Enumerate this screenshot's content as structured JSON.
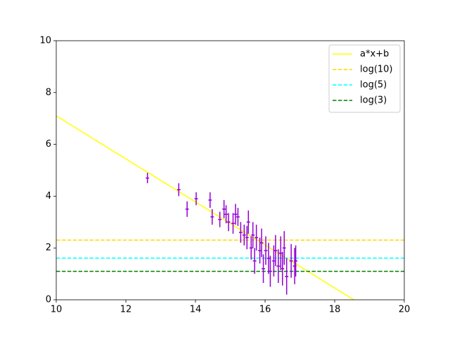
{
  "chart_data": {
    "type": "errorbar",
    "xlim": [
      10,
      20
    ],
    "ylim": [
      0,
      10
    ],
    "xticks": [
      10,
      12,
      14,
      16,
      18,
      20
    ],
    "yticks": [
      0,
      2,
      4,
      6,
      8,
      10
    ],
    "legend": "upper right",
    "series": [
      {
        "name": "a*x+b",
        "color": "#ffff00",
        "style": "solid",
        "x": [
          10,
          18.55
        ],
        "values": [
          7.1,
          0
        ]
      },
      {
        "name": "log(10)",
        "color": "#ffd700",
        "style": "dashed",
        "x": [
          10,
          20
        ],
        "values": [
          2.303,
          2.303
        ]
      },
      {
        "name": "log(5)",
        "color": "#00ffff",
        "style": "dashed",
        "x": [
          10,
          20
        ],
        "values": [
          1.609,
          1.609
        ]
      },
      {
        "name": "log(3)",
        "color": "#008000",
        "style": "dashed",
        "x": [
          10,
          20
        ],
        "values": [
          1.099,
          1.099
        ]
      }
    ],
    "points": {
      "color": "#9400d3",
      "xerr": 0.05,
      "x": [
        12.62,
        13.52,
        13.76,
        14.02,
        14.42,
        14.48,
        14.7,
        14.82,
        14.88,
        14.95,
        15.08,
        15.15,
        15.22,
        15.3,
        15.4,
        15.48,
        15.52,
        15.6,
        15.65,
        15.7,
        15.75,
        15.85,
        15.9,
        15.95,
        16.02,
        16.1,
        16.15,
        16.25,
        16.3,
        16.38,
        16.45,
        16.5,
        16.55,
        16.62,
        16.75,
        16.85,
        16.88
      ],
      "values": [
        4.7,
        4.25,
        3.5,
        3.9,
        3.85,
        3.2,
        3.1,
        3.5,
        3.3,
        3.0,
        2.95,
        3.3,
        3.2,
        2.6,
        2.5,
        2.4,
        3.0,
        2.0,
        2.5,
        1.5,
        2.4,
        1.9,
        2.2,
        1.2,
        1.9,
        1.6,
        1.1,
        1.5,
        1.9,
        1.3,
        1.8,
        1.2,
        2.0,
        0.9,
        1.5,
        1.3,
        1.5
      ],
      "yerr": [
        0.2,
        0.25,
        0.3,
        0.25,
        0.3,
        0.3,
        0.3,
        0.35,
        0.35,
        0.35,
        0.4,
        0.4,
        0.35,
        0.4,
        0.4,
        0.45,
        0.45,
        0.45,
        0.5,
        0.5,
        0.5,
        0.5,
        0.55,
        0.55,
        0.55,
        0.6,
        0.6,
        0.6,
        0.6,
        0.65,
        0.65,
        0.65,
        0.65,
        0.7,
        0.65,
        0.7,
        0.6
      ]
    }
  }
}
